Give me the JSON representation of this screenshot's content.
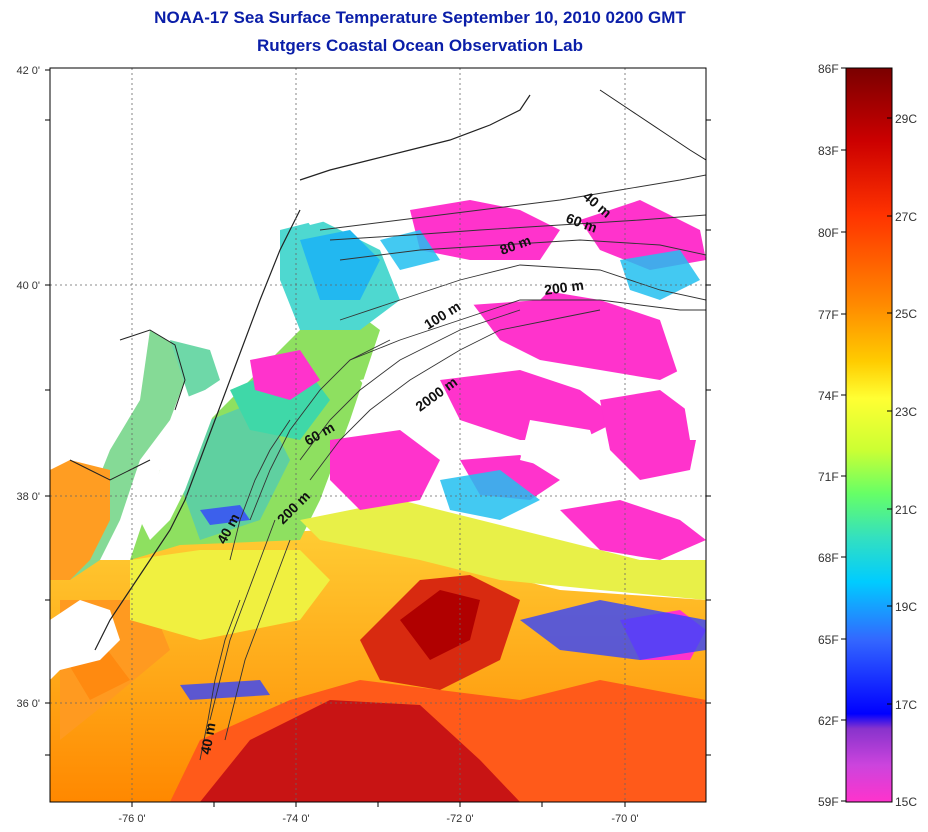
{
  "title": {
    "line1": "NOAA-17 Sea Surface Temperature September 10, 2010 0200 GMT",
    "line2": "Rutgers Coastal Ocean Observation Lab"
  },
  "map": {
    "lat_ticks": [
      "42 0'",
      "40 0'",
      "38 0'",
      "36 0'"
    ],
    "lon_ticks": [
      "-76 0'",
      "-74 0'",
      "-72 0'",
      "-70 0'"
    ],
    "depth_labels": [
      "40 m",
      "60 m",
      "80 m",
      "200 m",
      "100 m",
      "2000 m",
      "60 m",
      "200 m",
      "40 m",
      "40 m"
    ]
  },
  "colorbar": {
    "fahrenheit": [
      "86F",
      "83F",
      "80F",
      "77F",
      "74F",
      "71F",
      "68F",
      "65F",
      "62F",
      "59F"
    ],
    "celsius": [
      "29C",
      "27C",
      "25C",
      "23C",
      "21C",
      "19C",
      "17C",
      "15C"
    ],
    "colors": [
      "#7a0000",
      "#cc0000",
      "#ff3300",
      "#ff8800",
      "#ffcc00",
      "#ffff33",
      "#ccff33",
      "#66ff66",
      "#33e0c0",
      "#00ccff",
      "#3366ff",
      "#0000ff",
      "#8833cc",
      "#cc44dd",
      "#ff33cc"
    ]
  }
}
